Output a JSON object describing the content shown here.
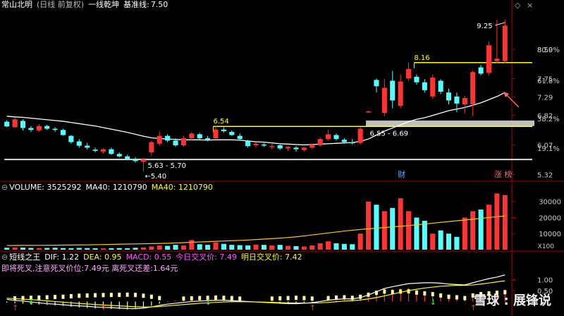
{
  "price_header": {
    "name": "常山北明",
    "period": "(日线 前复权)",
    "indicator": "一线乾坤",
    "baseline_label": "基准线:",
    "baseline_value": "7.50"
  },
  "volume_header": {
    "label": "VOLUME: 3525292",
    "ma40_a": "MA40: 1210790",
    "ma40_b": "MA40: 1210790"
  },
  "macd_header": {
    "name": "短线之王",
    "dif": "DIF: 1.22",
    "dea": "DEA: 0.95",
    "macd": "MACD: 0.55",
    "today_cross": "今日交叉价: 7.49",
    "tomorrow_cross": "明日交叉价: 7.42"
  },
  "macd_note": "即将死叉,注意死叉价位:7.49元 离死叉还差:1.64元",
  "watermark": "雪球 : 展锋说",
  "colors": {
    "up": "#ff3333",
    "down": "#54ffff",
    "ma": "#ffffff",
    "yellow": "#ffff00",
    "vol_ma": "#ffcc00"
  },
  "chart_data": [
    {
      "type": "candlestick",
      "panel": "price",
      "y_ticks": [
        "8.50",
        "7.75",
        "7.29",
        "6.82",
        "6.07",
        "5.32"
      ],
      "pct_ticks": [
        "80.9%",
        "61.8%",
        "38.2%",
        "19.1%"
      ],
      "ylim": [
        5.2,
        9.5
      ],
      "candles": [
        {
          "o": 6.66,
          "h": 6.7,
          "l": 6.52,
          "c": 6.54
        },
        {
          "o": 6.52,
          "h": 6.76,
          "l": 6.5,
          "c": 6.72
        },
        {
          "o": 6.68,
          "h": 6.72,
          "l": 6.44,
          "c": 6.5
        },
        {
          "o": 6.5,
          "h": 6.55,
          "l": 6.4,
          "c": 6.45
        },
        {
          "o": 6.44,
          "h": 6.6,
          "l": 6.4,
          "c": 6.55
        },
        {
          "o": 6.55,
          "h": 6.58,
          "l": 6.45,
          "c": 6.48
        },
        {
          "o": 6.48,
          "h": 6.52,
          "l": 6.4,
          "c": 6.45
        },
        {
          "o": 6.45,
          "h": 6.48,
          "l": 6.3,
          "c": 6.32
        },
        {
          "o": 6.3,
          "h": 6.32,
          "l": 6.1,
          "c": 6.14
        },
        {
          "o": 6.16,
          "h": 6.22,
          "l": 6.0,
          "c": 6.05
        },
        {
          "o": 6.05,
          "h": 6.12,
          "l": 5.95,
          "c": 6.0
        },
        {
          "o": 5.95,
          "h": 6.0,
          "l": 5.88,
          "c": 5.92
        },
        {
          "o": 5.9,
          "h": 5.98,
          "l": 5.85,
          "c": 5.96
        },
        {
          "o": 5.96,
          "h": 6.0,
          "l": 5.82,
          "c": 5.84
        },
        {
          "o": 5.84,
          "h": 5.88,
          "l": 5.75,
          "c": 5.78
        },
        {
          "o": 5.78,
          "h": 5.82,
          "l": 5.7,
          "c": 5.72
        },
        {
          "o": 5.72,
          "h": 5.76,
          "l": 5.62,
          "c": 5.66
        },
        {
          "o": 5.64,
          "h": 5.74,
          "l": 5.4,
          "c": 5.7
        },
        {
          "o": 5.88,
          "h": 6.18,
          "l": 5.8,
          "c": 6.14
        },
        {
          "o": 6.1,
          "h": 6.4,
          "l": 6.05,
          "c": 6.3
        },
        {
          "o": 6.3,
          "h": 6.34,
          "l": 6.14,
          "c": 6.18
        },
        {
          "o": 6.18,
          "h": 6.24,
          "l": 6.02,
          "c": 6.06
        },
        {
          "o": 6.06,
          "h": 6.3,
          "l": 6.02,
          "c": 6.24
        },
        {
          "o": 6.24,
          "h": 6.4,
          "l": 6.18,
          "c": 6.36
        },
        {
          "o": 6.34,
          "h": 6.38,
          "l": 6.2,
          "c": 6.24
        },
        {
          "o": 6.24,
          "h": 6.3,
          "l": 6.16,
          "c": 6.2
        },
        {
          "o": 6.24,
          "h": 6.54,
          "l": 6.2,
          "c": 6.46
        },
        {
          "o": 6.46,
          "h": 6.52,
          "l": 6.38,
          "c": 6.42
        },
        {
          "o": 6.4,
          "h": 6.44,
          "l": 6.3,
          "c": 6.32
        },
        {
          "o": 6.3,
          "h": 6.36,
          "l": 6.2,
          "c": 6.22
        },
        {
          "o": 6.18,
          "h": 6.2,
          "l": 6.0,
          "c": 6.04
        },
        {
          "o": 6.06,
          "h": 6.14,
          "l": 6.0,
          "c": 6.1
        },
        {
          "o": 6.08,
          "h": 6.12,
          "l": 6.02,
          "c": 6.06
        },
        {
          "o": 6.02,
          "h": 6.1,
          "l": 5.96,
          "c": 6.04
        },
        {
          "o": 6.06,
          "h": 6.08,
          "l": 5.94,
          "c": 5.98
        },
        {
          "o": 5.98,
          "h": 6.04,
          "l": 5.92,
          "c": 6.02
        },
        {
          "o": 6.0,
          "h": 6.04,
          "l": 5.9,
          "c": 5.96
        },
        {
          "o": 5.94,
          "h": 6.02,
          "l": 5.9,
          "c": 6.0
        },
        {
          "o": 6.0,
          "h": 6.1,
          "l": 5.96,
          "c": 6.08
        },
        {
          "o": 6.06,
          "h": 6.26,
          "l": 6.02,
          "c": 6.22
        },
        {
          "o": 6.22,
          "h": 6.46,
          "l": 6.18,
          "c": 6.34
        },
        {
          "o": 6.32,
          "h": 6.36,
          "l": 6.18,
          "c": 6.22
        },
        {
          "o": 6.2,
          "h": 6.24,
          "l": 6.1,
          "c": 6.14
        },
        {
          "o": 6.14,
          "h": 6.22,
          "l": 6.08,
          "c": 6.12
        },
        {
          "o": 6.12,
          "h": 6.52,
          "l": 6.08,
          "c": 6.48
        },
        {
          "o": 6.92,
          "h": 6.94,
          "l": 6.9,
          "c": 6.92
        },
        {
          "o": 7.72,
          "h": 7.76,
          "l": 7.4,
          "c": 7.56
        },
        {
          "o": 6.88,
          "h": 7.75,
          "l": 6.8,
          "c": 7.52
        },
        {
          "o": 7.7,
          "h": 7.95,
          "l": 7.0,
          "c": 7.2
        },
        {
          "o": 7.06,
          "h": 7.86,
          "l": 7.0,
          "c": 7.68
        },
        {
          "o": 7.76,
          "h": 8.16,
          "l": 7.7,
          "c": 8.0
        },
        {
          "o": 7.8,
          "h": 7.86,
          "l": 7.6,
          "c": 7.66
        },
        {
          "o": 7.66,
          "h": 7.74,
          "l": 7.4,
          "c": 7.46
        },
        {
          "o": 7.3,
          "h": 7.86,
          "l": 7.24,
          "c": 7.78
        },
        {
          "o": 7.7,
          "h": 7.74,
          "l": 7.36,
          "c": 7.42
        },
        {
          "o": 7.4,
          "h": 7.5,
          "l": 7.1,
          "c": 7.2
        },
        {
          "o": 7.3,
          "h": 7.4,
          "l": 6.9,
          "c": 7.12
        },
        {
          "o": 7.1,
          "h": 7.32,
          "l": 6.86,
          "c": 7.26
        },
        {
          "o": 7.1,
          "h": 7.96,
          "l": 6.8,
          "c": 7.92
        },
        {
          "o": 8.04,
          "h": 8.1,
          "l": 7.84,
          "c": 7.88
        },
        {
          "o": 7.9,
          "h": 8.7,
          "l": 7.84,
          "c": 8.6
        },
        {
          "o": 8.2,
          "h": 9.25,
          "l": 8.15,
          "c": 8.26
        },
        {
          "o": 8.2,
          "h": 9.25,
          "l": 8.14,
          "c": 9.1
        }
      ],
      "ma": [
        6.8,
        6.78,
        6.77,
        6.75,
        6.73,
        6.71,
        6.69,
        6.67,
        6.64,
        6.61,
        6.58,
        6.55,
        6.51,
        6.47,
        6.43,
        6.39,
        6.34,
        6.29,
        6.25,
        6.23,
        6.22,
        6.21,
        6.2,
        6.2,
        6.2,
        6.19,
        6.2,
        6.2,
        6.2,
        6.19,
        6.17,
        6.15,
        6.14,
        6.12,
        6.1,
        6.09,
        6.08,
        6.07,
        6.08,
        6.09,
        6.1,
        6.11,
        6.12,
        6.13,
        6.16,
        6.22,
        6.32,
        6.42,
        6.5,
        6.58,
        6.66,
        6.72,
        6.76,
        6.82,
        6.88,
        6.94,
        6.98,
        7.02,
        7.08,
        7.14,
        7.22,
        7.3,
        7.4
      ],
      "levels": [
        {
          "value": 8.16,
          "label": "8.16",
          "from": 51
        },
        {
          "value": 6.54,
          "label": "6.54",
          "from": 26
        },
        {
          "value": 5.7,
          "label": "5.63 - 5.70",
          "from": 0
        }
      ],
      "gap_zone": {
        "low": 6.55,
        "high": 6.69,
        "label": "6.55 - 6.69",
        "from": 45
      },
      "annotations": [
        {
          "text": "9.25",
          "kind": "high",
          "index": 62
        },
        {
          "text": "5.40",
          "kind": "low",
          "index": 17
        },
        {
          "text": "财",
          "kind": "badge",
          "index": 49
        },
        {
          "text": "涨 榜",
          "kind": "badge",
          "index": 61
        }
      ]
    },
    {
      "type": "bar",
      "panel": "volume",
      "y_ticks": [
        "30000",
        "20000",
        "10000"
      ],
      "unit_label": "X100",
      "ylim": [
        0,
        36000
      ],
      "values": [
        1200,
        1400,
        1300,
        1100,
        1000,
        1100,
        1200,
        1000,
        900,
        1100,
        1000,
        900,
        800,
        900,
        1000,
        900,
        1200,
        1400,
        2000,
        2600,
        2400,
        3000,
        2600,
        6000,
        3400,
        3000,
        4500,
        3600,
        3000,
        2800,
        2600,
        3200,
        3000,
        2600,
        3000,
        2400,
        2200,
        2000,
        2600,
        4000,
        5200,
        4000,
        3600,
        3400,
        10000,
        30000,
        28000,
        24000,
        26000,
        32000,
        24000,
        20000,
        18000,
        10000,
        12000,
        10000,
        8000,
        20000,
        24000,
        25000,
        28000,
        35000,
        34000
      ],
      "ma40": [
        2600,
        2650,
        2700,
        2700,
        2720,
        2750,
        2800,
        2850,
        2900,
        2950,
        3000,
        3100,
        3200,
        3300,
        3400,
        3500,
        3600,
        3700,
        3800,
        3900,
        4000,
        4200,
        4400,
        4600,
        4800,
        5000,
        5200,
        5400,
        5600,
        5800,
        6000,
        6300,
        6600,
        6900,
        7200,
        7600,
        8000,
        8600,
        9200,
        9800,
        10400,
        11000,
        11600,
        12100,
        12600,
        13000,
        13400,
        13800,
        14200,
        14600,
        15000,
        15500,
        16000,
        16500,
        17000,
        17500,
        18000,
        18500,
        19000,
        19500,
        20000,
        20500,
        21000
      ]
    },
    {
      "type": "bar",
      "panel": "macd",
      "y_ticks": [
        "1.00",
        "0.50"
      ],
      "ylim": [
        -0.6,
        1.6
      ],
      "values": [
        -0.05,
        -0.08,
        -0.1,
        -0.12,
        -0.14,
        -0.16,
        -0.18,
        -0.2,
        -0.24,
        -0.28,
        -0.3,
        -0.32,
        -0.33,
        -0.34,
        -0.35,
        -0.36,
        -0.34,
        -0.28,
        -0.2,
        -0.1,
        -0.02,
        0.04,
        0.06,
        0.08,
        0.1,
        0.12,
        0.14,
        0.12,
        0.1,
        0.06,
        0.02,
        -0.02,
        -0.04,
        -0.06,
        -0.08,
        -0.1,
        -0.12,
        -0.1,
        -0.06,
        0.02,
        0.1,
        0.14,
        0.16,
        0.12,
        0.2,
        0.36,
        0.5,
        0.6,
        0.56,
        0.6,
        0.62,
        0.52,
        0.46,
        0.4,
        0.3,
        0.2,
        0.16,
        0.1,
        0.3,
        0.4,
        0.46,
        0.5,
        0.55
      ],
      "dif": [
        0.1,
        0.05,
        0.02,
        -0.02,
        -0.06,
        -0.1,
        -0.12,
        -0.15,
        -0.18,
        -0.2,
        -0.22,
        -0.25,
        -0.27,
        -0.28,
        -0.3,
        -0.32,
        -0.33,
        -0.3,
        -0.25,
        -0.18,
        -0.12,
        -0.08,
        -0.04,
        0.0,
        0.02,
        0.04,
        0.06,
        0.06,
        0.04,
        0.02,
        0.0,
        -0.02,
        -0.04,
        -0.06,
        -0.08,
        -0.1,
        -0.1,
        -0.08,
        -0.05,
        0.0,
        0.06,
        0.1,
        0.12,
        0.12,
        0.18,
        0.3,
        0.45,
        0.6,
        0.68,
        0.75,
        0.82,
        0.84,
        0.86,
        0.86,
        0.84,
        0.8,
        0.78,
        0.76,
        0.86,
        0.96,
        1.05,
        1.12,
        1.22
      ],
      "dea": [
        0.15,
        0.13,
        0.11,
        0.09,
        0.06,
        0.03,
        0.0,
        -0.03,
        -0.06,
        -0.09,
        -0.11,
        -0.14,
        -0.16,
        -0.18,
        -0.2,
        -0.22,
        -0.24,
        -0.25,
        -0.25,
        -0.23,
        -0.2,
        -0.17,
        -0.14,
        -0.11,
        -0.08,
        -0.06,
        -0.04,
        -0.02,
        -0.01,
        -0.01,
        -0.01,
        -0.02,
        -0.03,
        -0.04,
        -0.05,
        -0.06,
        -0.07,
        -0.07,
        -0.07,
        -0.06,
        -0.04,
        -0.01,
        0.02,
        0.04,
        0.07,
        0.12,
        0.18,
        0.26,
        0.34,
        0.42,
        0.5,
        0.56,
        0.62,
        0.66,
        0.7,
        0.72,
        0.74,
        0.74,
        0.76,
        0.8,
        0.85,
        0.9,
        0.95
      ],
      "signals": [
        {
          "index": 1,
          "dir": "up"
        },
        {
          "index": 3,
          "dir": "down"
        },
        {
          "index": 12,
          "dir": "up"
        },
        {
          "index": 25,
          "dir": "down"
        },
        {
          "index": 38,
          "dir": "up"
        },
        {
          "index": 53,
          "dir": "down"
        },
        {
          "index": 58,
          "dir": "up"
        }
      ]
    }
  ]
}
